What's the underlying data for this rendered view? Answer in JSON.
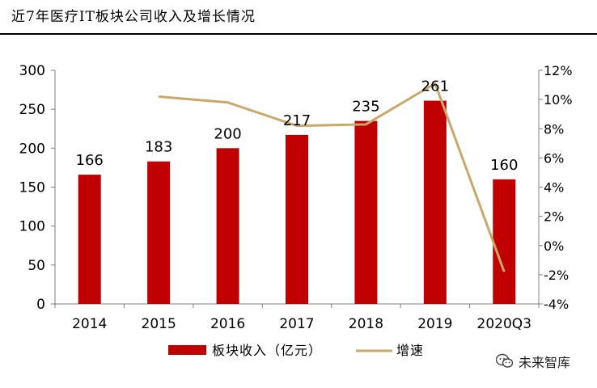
{
  "title": "近7年医疗IT板块公司收入及增长情况",
  "watermark": "未来智库",
  "colors": {
    "bar": "#C00000",
    "line": "#C9A86A",
    "axis": "#7f7f7f"
  },
  "chart_data": {
    "type": "bar",
    "title": "近7年医疗IT板块公司收入及增长情况",
    "categories": [
      "2014",
      "2015",
      "2016",
      "2017",
      "2018",
      "2019",
      "2020Q3"
    ],
    "series": [
      {
        "name": "板块收入（亿元）",
        "type": "bar",
        "axis": "left",
        "values": [
          166,
          183,
          200,
          217,
          235,
          261,
          160
        ],
        "labels": [
          "166",
          "183",
          "200",
          "217",
          "235",
          "261",
          "160"
        ]
      },
      {
        "name": "增速",
        "type": "line",
        "axis": "right",
        "values": [
          null,
          0.102,
          0.098,
          0.082,
          0.083,
          0.111,
          -0.018
        ]
      }
    ],
    "y_left": {
      "min": 0,
      "max": 300,
      "ticks": [
        0,
        50,
        100,
        150,
        200,
        250,
        300
      ],
      "tick_labels": [
        "0",
        "50",
        "100",
        "150",
        "200",
        "250",
        "300"
      ]
    },
    "y_right": {
      "min": -0.04,
      "max": 0.12,
      "ticks": [
        -0.04,
        -0.02,
        0,
        0.02,
        0.04,
        0.06,
        0.08,
        0.1,
        0.12
      ],
      "tick_labels": [
        "-4%",
        "-2%",
        "0%",
        "2%",
        "4%",
        "6%",
        "8%",
        "10%",
        "12%"
      ]
    },
    "legend": {
      "placement": "bottom",
      "items": [
        "板块收入（亿元）",
        "增速"
      ]
    },
    "grid": false
  }
}
